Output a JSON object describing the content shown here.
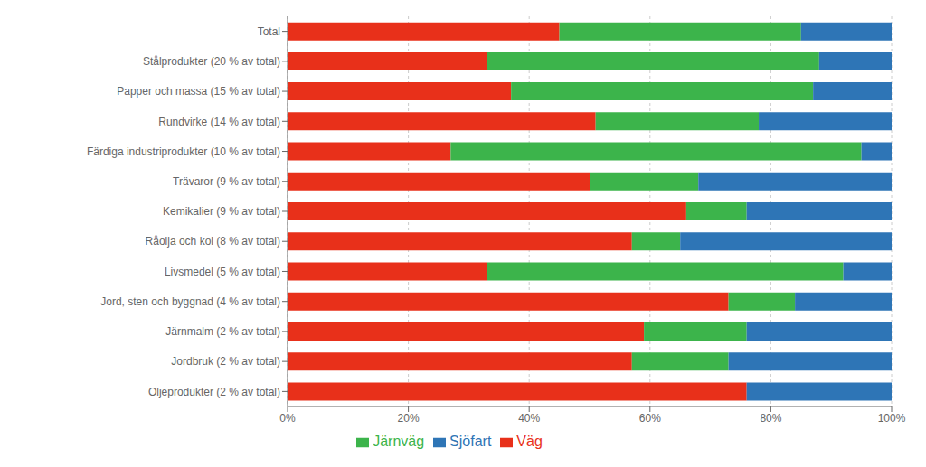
{
  "chart_data": {
    "type": "bar",
    "orientation": "horizontal",
    "stacked": true,
    "categories": [
      "Total",
      "Stålprodukter (20 % av total)",
      "Papper och massa (15 % av total)",
      "Rundvirke (14 % av total)",
      "Färdiga industriprodukter (10 % av total)",
      "Trävaror (9 % av total)",
      "Kemikalier (9 % av total)",
      "Råolja och kol (8 % av total)",
      "Livsmedel (5 % av total)",
      "Jord, sten och byggnad (4 % av total)",
      "Järnmalm (2 % av total)",
      "Jordbruk (2 % av total)",
      "Oljeprodukter (2 % av total)"
    ],
    "series": [
      {
        "name": "Väg",
        "color": "#E8301A",
        "values": [
          45,
          33,
          37,
          51,
          27,
          50,
          66,
          57,
          33,
          73,
          59,
          57,
          76
        ]
      },
      {
        "name": "Järnväg",
        "color": "#3CB44B",
        "values": [
          40,
          55,
          50,
          27,
          68,
          18,
          10,
          8,
          59,
          11,
          17,
          16,
          0
        ]
      },
      {
        "name": "Sjöfart",
        "color": "#2E75B6",
        "values": [
          15,
          12,
          13,
          22,
          5,
          32,
          24,
          35,
          8,
          16,
          24,
          27,
          24
        ]
      }
    ],
    "xlim": [
      0,
      100
    ],
    "xticks": [
      {
        "value": 0,
        "label": "0%"
      },
      {
        "value": 20,
        "label": "20%"
      },
      {
        "value": 40,
        "label": "40%"
      },
      {
        "value": 60,
        "label": "60%"
      },
      {
        "value": 80,
        "label": "80%"
      },
      {
        "value": 100,
        "label": "100%"
      }
    ],
    "grid": true,
    "legend": "bottom"
  }
}
